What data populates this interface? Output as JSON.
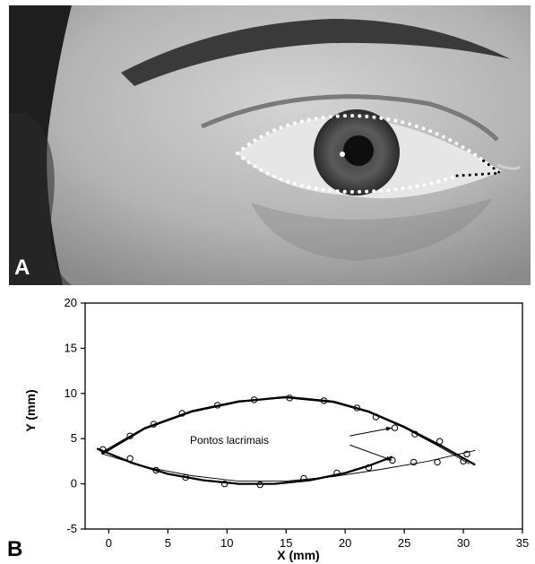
{
  "panels": {
    "a_label": "A",
    "b_label": "B"
  },
  "photo": {
    "description_icon": "eye-photo-with-dotted-contour"
  },
  "chart_data": {
    "type": "scatter",
    "xlabel": "X (mm)",
    "ylabel": "Y (mm)",
    "xlim": [
      -2,
      35
    ],
    "ylim": [
      -5,
      20
    ],
    "xticks": [
      0,
      5,
      10,
      15,
      20,
      25,
      30,
      35
    ],
    "yticks": [
      -5,
      0,
      5,
      10,
      15,
      20
    ],
    "annotation": "Pontos lacrimais",
    "series": [
      {
        "style": "markers-open-circle",
        "points": [
          [
            -0.5,
            3.8
          ],
          [
            1.8,
            5.3
          ],
          [
            3.8,
            6.6
          ],
          [
            6.2,
            7.8
          ],
          [
            9.2,
            8.7
          ],
          [
            12.3,
            9.3
          ],
          [
            15.3,
            9.5
          ],
          [
            18.2,
            9.2
          ],
          [
            21,
            8.4
          ],
          [
            22.6,
            7.4
          ],
          [
            24.2,
            6.2
          ],
          [
            25.9,
            5.5
          ],
          [
            28,
            4.7
          ],
          [
            30.3,
            3.3
          ],
          [
            1.8,
            2.8
          ],
          [
            4,
            1.5
          ],
          [
            6.5,
            0.7
          ],
          [
            9.8,
            0.0
          ],
          [
            12.8,
            -0.1
          ],
          [
            16.5,
            0.6
          ],
          [
            19.3,
            1.2
          ],
          [
            22,
            1.8
          ],
          [
            24,
            2.6
          ],
          [
            25.8,
            2.4
          ],
          [
            27.8,
            2.4
          ],
          [
            30,
            2.5
          ]
        ]
      },
      {
        "style": "line-thick-upper-fit",
        "points": [
          [
            -0.6,
            3.3
          ],
          [
            3,
            6.1
          ],
          [
            7,
            8.0
          ],
          [
            11,
            9.1
          ],
          [
            15,
            9.6
          ],
          [
            19,
            9.1
          ],
          [
            22,
            8.0
          ],
          [
            25,
            6.3
          ],
          [
            28,
            4.3
          ],
          [
            31,
            2.1
          ]
        ]
      },
      {
        "style": "line-thin-upper-fit",
        "points": [
          [
            -0.6,
            3.5
          ],
          [
            3,
            6.2
          ],
          [
            7,
            8.1
          ],
          [
            11,
            9.2
          ],
          [
            15,
            9.5
          ],
          [
            19,
            9.0
          ],
          [
            22,
            7.9
          ],
          [
            25,
            6.2
          ],
          [
            28,
            4.1
          ],
          [
            30.5,
            2.2
          ]
        ]
      },
      {
        "style": "line-thick-lower-fit",
        "points": [
          [
            -1,
            3.9
          ],
          [
            2,
            2.3
          ],
          [
            5,
            1.1
          ],
          [
            8,
            0.4
          ],
          [
            11,
            0.0
          ],
          [
            14,
            0.0
          ],
          [
            17,
            0.4
          ],
          [
            20,
            1.2
          ],
          [
            22,
            2.0
          ],
          [
            24,
            3.0
          ]
        ]
      },
      {
        "style": "line-thin-lower-fit",
        "points": [
          [
            -0.5,
            3.3
          ],
          [
            3,
            1.9
          ],
          [
            7,
            0.9
          ],
          [
            11,
            0.3
          ],
          [
            15,
            0.3
          ],
          [
            19,
            0.8
          ],
          [
            23,
            1.6
          ],
          [
            27,
            2.5
          ],
          [
            31,
            3.7
          ]
        ]
      }
    ],
    "arrows": [
      {
        "from": [
          23.8,
          5.3
        ],
        "to": [
          24.2,
          6.2
        ]
      },
      {
        "from": [
          23.8,
          4.3
        ],
        "to": [
          24.2,
          2.6
        ]
      }
    ],
    "grid": false,
    "legend": "none"
  }
}
